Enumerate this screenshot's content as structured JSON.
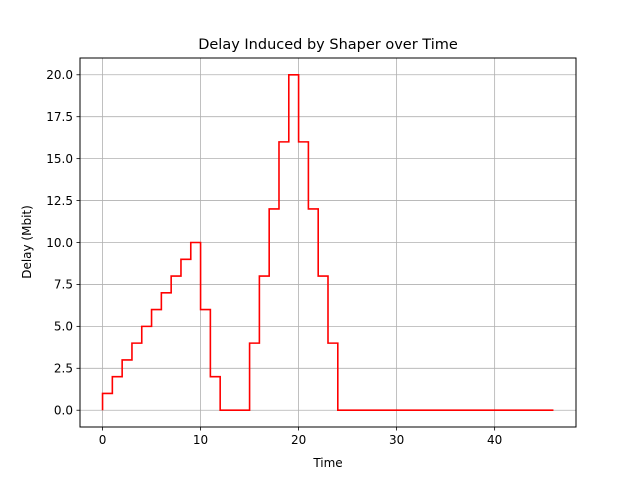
{
  "chart_data": {
    "type": "line",
    "step": "post",
    "title": "Delay Induced by Shaper over Time",
    "xlabel": "Time",
    "ylabel": "Delay (Mbit)",
    "xlim": [
      -2.3,
      48.3
    ],
    "ylim": [
      -1.0,
      21.0
    ],
    "grid": true,
    "x_ticks": [
      0,
      10,
      20,
      30,
      40
    ],
    "x_tick_labels": [
      "0",
      "10",
      "20",
      "30",
      "40"
    ],
    "y_ticks": [
      0,
      2.5,
      5,
      7.5,
      10,
      12.5,
      15,
      17.5,
      20
    ],
    "y_tick_labels": [
      "0.0",
      "2.5",
      "5.0",
      "7.5",
      "10.0",
      "12.5",
      "15.0",
      "17.5",
      "20.0"
    ],
    "series": [
      {
        "color": "#ff0000",
        "x": [
          0,
          1,
          2,
          3,
          4,
          5,
          6,
          7,
          8,
          9,
          10,
          11,
          12,
          13,
          14,
          15,
          16,
          17,
          18,
          19,
          20,
          21,
          22,
          23,
          24,
          46
        ],
        "y": [
          1,
          2,
          3,
          4,
          5,
          6,
          7,
          8,
          9,
          10,
          6,
          2,
          0,
          0,
          0,
          4,
          8,
          12,
          16,
          20,
          16,
          12,
          8,
          4,
          0,
          0
        ]
      }
    ]
  }
}
